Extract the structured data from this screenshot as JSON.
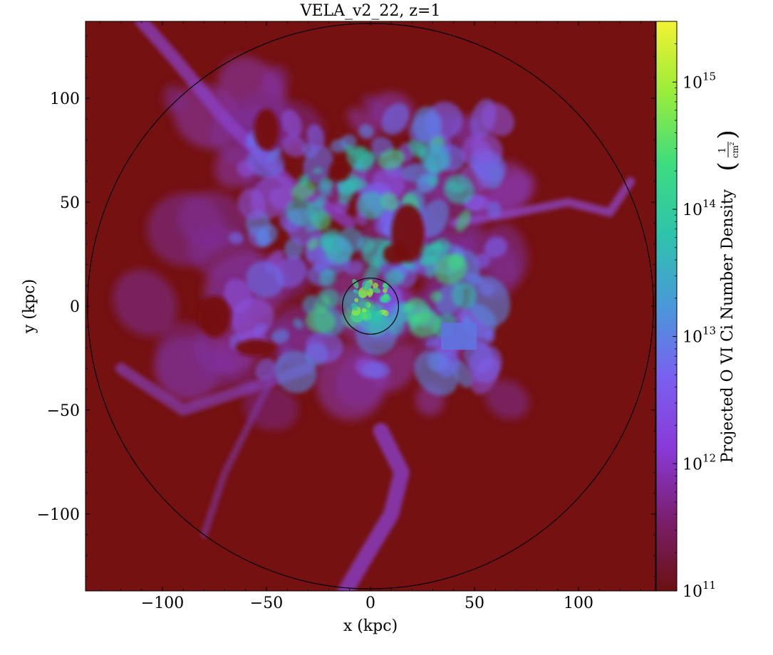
{
  "chart_data": {
    "type": "heatmap",
    "title": "VELA_v2_22, z=1",
    "xlabel": "x  (kpc)",
    "ylabel": "y  (kpc)",
    "xlim": [
      -137,
      137
    ],
    "ylim": [
      -137,
      137
    ],
    "x_ticks": [
      -100,
      -50,
      0,
      50,
      100
    ],
    "y_ticks": [
      -100,
      -50,
      0,
      50,
      100
    ],
    "x_tick_labels": [
      "−100",
      "−50",
      "0",
      "50",
      "100"
    ],
    "y_tick_labels": [
      "−100",
      "−50",
      "0",
      "50",
      "100"
    ],
    "colorbar": {
      "label": "Projected O VI Ci Number Density",
      "unit_numerator": "1",
      "unit_denominator": "cm",
      "unit_denominator_exp": "2",
      "scale": "log",
      "range": [
        100000000000.0,
        3000000000000000.0
      ],
      "tick_values": [
        100000000000.0,
        1000000000000.0,
        10000000000000.0,
        100000000000000.0,
        1000000000000000.0
      ],
      "tick_base": "10",
      "tick_exponents": [
        "11",
        "12",
        "13",
        "14",
        "15"
      ],
      "colormap": "plasma-viridis",
      "color_stops": [
        "#6b1111",
        "#7b1e6e",
        "#8a39d8",
        "#7a60f0",
        "#4a98da",
        "#2ec3ac",
        "#3edc80",
        "#9aec3a",
        "#f2f233"
      ]
    },
    "background_color": "#751111",
    "circles": [
      {
        "center": [
          0,
          0
        ],
        "radius": 136
      },
      {
        "center": [
          0,
          0
        ],
        "radius": 13.5
      }
    ],
    "grid": false,
    "legend": "none"
  }
}
